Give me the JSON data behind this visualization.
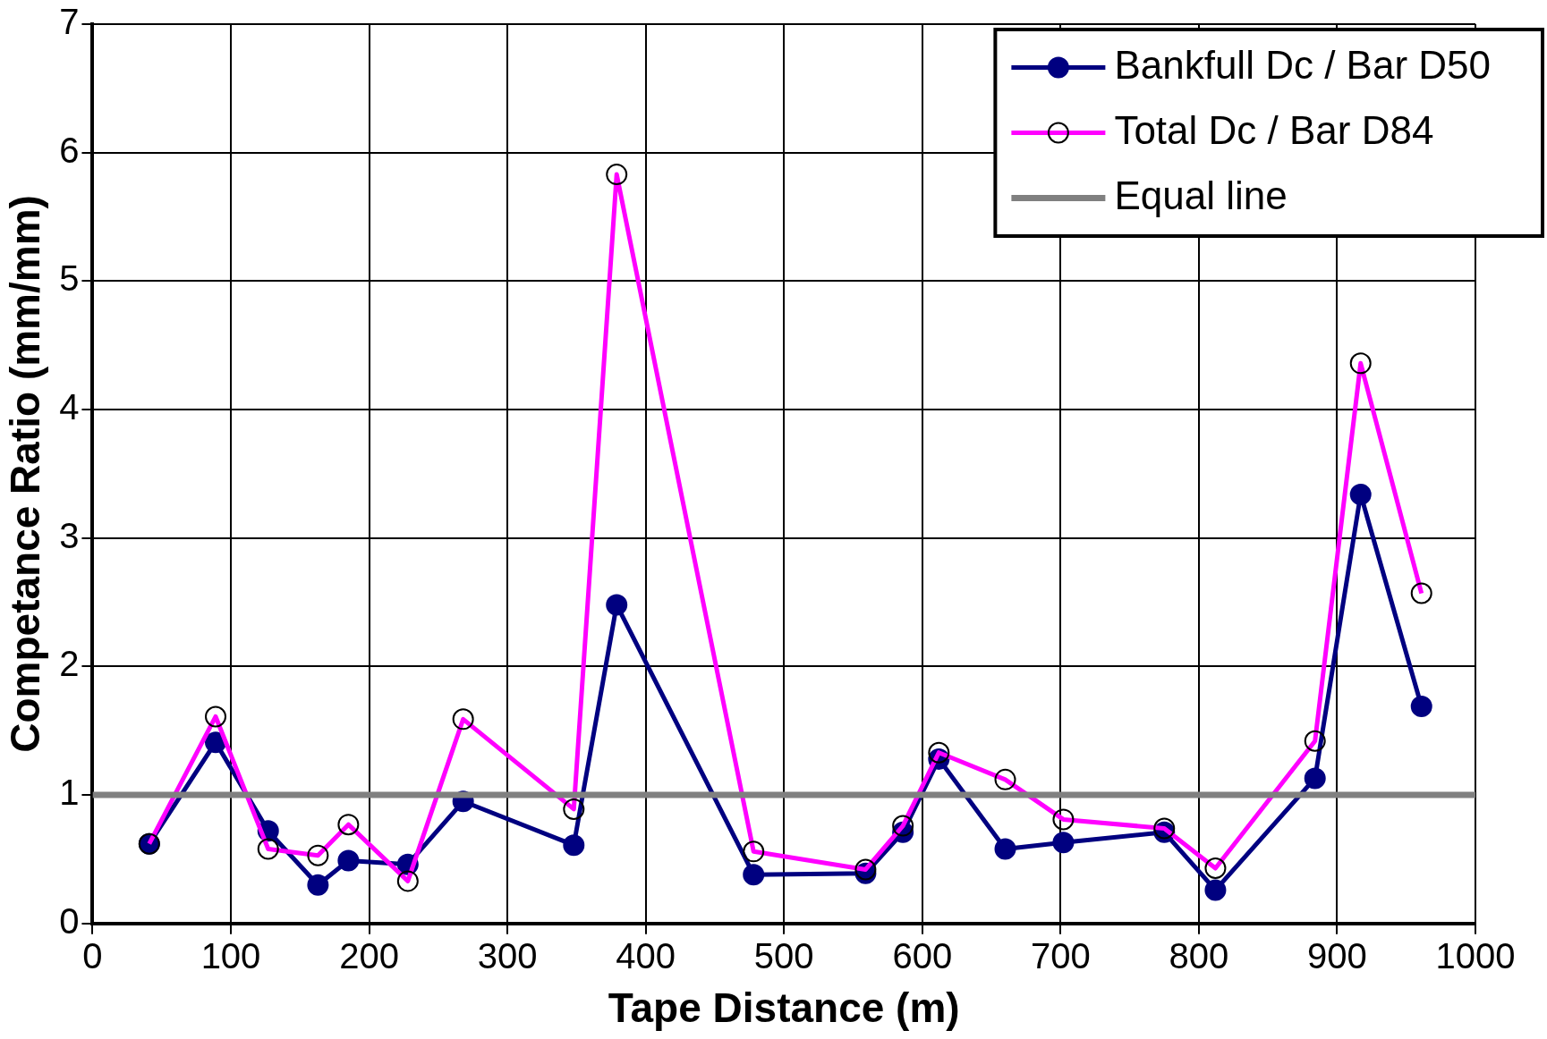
{
  "chart_data": {
    "type": "line",
    "xlabel": "Tape Distance (m)",
    "ylabel": "Competance Ratio (mm/mm)",
    "x": [
      41,
      89,
      127,
      163,
      185,
      228,
      268,
      348,
      379,
      478,
      559,
      586,
      612,
      660,
      702,
      775,
      812,
      884,
      917,
      961
    ],
    "series": [
      {
        "name": "Bankfull Dc / Bar D50",
        "color": "#000080",
        "marker": "circle",
        "values": [
          0.62,
          1.41,
          0.72,
          0.3,
          0.49,
          0.46,
          0.95,
          0.61,
          2.48,
          0.38,
          0.39,
          0.71,
          1.28,
          0.58,
          0.63,
          0.71,
          0.26,
          1.13,
          3.34,
          1.69
        ]
      },
      {
        "name": "Total Dc / Bar D84",
        "color": "#ff00ff",
        "marker": "circle",
        "values": [
          0.62,
          1.61,
          0.58,
          0.53,
          0.77,
          0.33,
          1.59,
          0.89,
          5.83,
          0.56,
          0.42,
          0.76,
          1.33,
          1.12,
          0.81,
          0.74,
          0.43,
          1.42,
          4.36,
          2.57
        ]
      },
      {
        "name": "Equal line",
        "color": "#808080",
        "marker": "none",
        "x": [
          0,
          1000
        ],
        "values": [
          1,
          1
        ]
      }
    ],
    "xlim": [
      0,
      1000
    ],
    "xticks": [
      0,
      100,
      200,
      300,
      400,
      500,
      600,
      700,
      800,
      900,
      1000
    ],
    "ylim": [
      0,
      7
    ],
    "yticks": [
      0,
      1,
      2,
      3,
      4,
      5,
      6,
      7
    ],
    "grid": true,
    "legend": "top right",
    "line_style": "solid"
  }
}
